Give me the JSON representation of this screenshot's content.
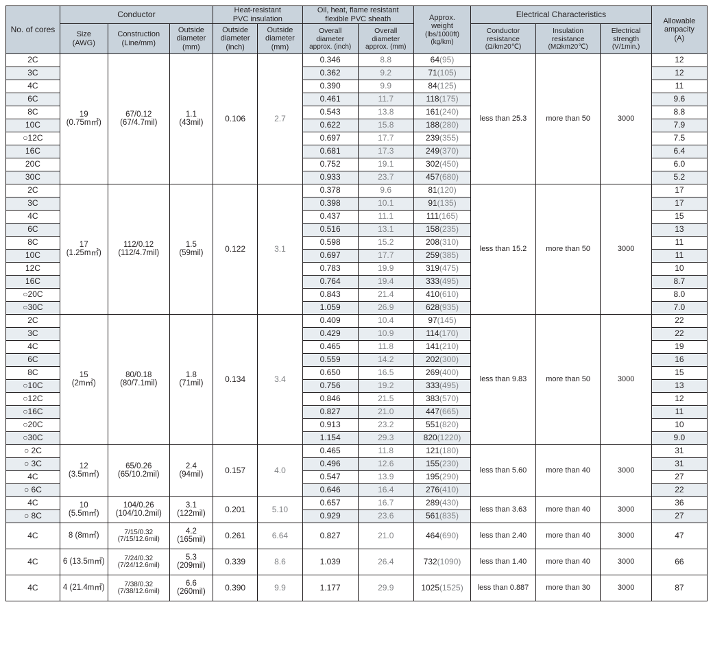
{
  "headers": {
    "cores": "No. of cores",
    "conductor": "Conductor",
    "size": "Size",
    "size_unit": "(AWG)",
    "construction": "Construction",
    "construction_unit": "(Line/mm)",
    "outside_diameter": "Outside\ndiameter",
    "od_mm": "(mm)",
    "pvc_insulation": "Heat-resistant\nPVC insulation",
    "od_inch": "(inch)",
    "sheath": "Oil, heat, flame resistant\nflexible PVC sheath",
    "overall_in": "Overall\ndiameter",
    "overall_in_unit": "approx. (inch)",
    "overall_mm_unit": "approx. (mm)",
    "weight": "Approx.\nweight",
    "weight_unit1": "(lbs/1000ft)",
    "weight_unit2": "(kg/km)",
    "elec": "Electrical Characteristics",
    "cond_res": "Conductor\nresistance",
    "cond_res_unit": "(Ω/km20℃)",
    "ins_res": "Insulation\nresistance",
    "ins_res_unit": "(MΩkm20℃)",
    "strength": "Electrical\nstrength",
    "strength_unit": "(V/1min.)",
    "ampacity": "Allowable\nampacity",
    "ampacity_unit": "(A)"
  },
  "groups": [
    {
      "size_main": "19",
      "size_sub": "(0.75m㎡)",
      "cons_main": "67/0.12",
      "cons_sub": "(67/4.7mil)",
      "od_main": "1.1",
      "od_sub": "(43mil)",
      "ins_in": "0.106",
      "ins_mm": "2.7",
      "cr": "less than 25.3",
      "ir": "more than 50",
      "es": "3000",
      "rows": [
        {
          "c": "2C",
          "oin": "0.346",
          "omm": "8.8",
          "w1": "64",
          "w2": "(95)",
          "a": "12"
        },
        {
          "c": "3C",
          "oin": "0.362",
          "omm": "9.2",
          "w1": "71",
          "w2": "(105)",
          "a": "12"
        },
        {
          "c": "4C",
          "oin": "0.390",
          "omm": "9.9",
          "w1": "84",
          "w2": "(125)",
          "a": "11"
        },
        {
          "c": "6C",
          "oin": "0.461",
          "omm": "11.7",
          "w1": "118",
          "w2": "(175)",
          "a": "9.6"
        },
        {
          "c": "8C",
          "oin": "0.543",
          "omm": "13.8",
          "w1": "161",
          "w2": "(240)",
          "a": "8.8"
        },
        {
          "c": "10C",
          "oin": "0.622",
          "omm": "15.8",
          "w1": "188",
          "w2": "(280)",
          "a": "7.9"
        },
        {
          "c": "○12C",
          "oin": "0.697",
          "omm": "17.7",
          "w1": "239",
          "w2": "(355)",
          "a": "7.5"
        },
        {
          "c": "16C",
          "oin": "0.681",
          "omm": "17.3",
          "w1": "249",
          "w2": "(370)",
          "a": "6.4"
        },
        {
          "c": "20C",
          "oin": "0.752",
          "omm": "19.1",
          "w1": "302",
          "w2": "(450)",
          "a": "6.0"
        },
        {
          "c": "30C",
          "oin": "0.933",
          "omm": "23.7",
          "w1": "457",
          "w2": "(680)",
          "a": "5.2"
        }
      ]
    },
    {
      "size_main": "17",
      "size_sub": "(1.25m㎡)",
      "cons_main": "112/0.12",
      "cons_sub": "(112/4.7mil)",
      "od_main": "1.5",
      "od_sub": "(59mil)",
      "ins_in": "0.122",
      "ins_mm": "3.1",
      "cr": "less than 15.2",
      "ir": "more than 50",
      "es": "3000",
      "rows": [
        {
          "c": "2C",
          "oin": "0.378",
          "omm": "9.6",
          "w1": "81",
          "w2": "(120)",
          "a": "17"
        },
        {
          "c": "3C",
          "oin": "0.398",
          "omm": "10.1",
          "w1": "91",
          "w2": "(135)",
          "a": "17"
        },
        {
          "c": "4C",
          "oin": "0.437",
          "omm": "11.1",
          "w1": "111",
          "w2": "(165)",
          "a": "15"
        },
        {
          "c": "6C",
          "oin": "0.516",
          "omm": "13.1",
          "w1": "158",
          "w2": "(235)",
          "a": "13"
        },
        {
          "c": "8C",
          "oin": "0.598",
          "omm": "15.2",
          "w1": "208",
          "w2": "(310)",
          "a": "11"
        },
        {
          "c": "10C",
          "oin": "0.697",
          "omm": "17.7",
          "w1": "259",
          "w2": "(385)",
          "a": "11"
        },
        {
          "c": "12C",
          "oin": "0.783",
          "omm": "19.9",
          "w1": "319",
          "w2": "(475)",
          "a": "10"
        },
        {
          "c": "16C",
          "oin": "0.764",
          "omm": "19.4",
          "w1": "333",
          "w2": "(495)",
          "a": "8.7"
        },
        {
          "c": "○20C",
          "oin": "0.843",
          "omm": "21.4",
          "w1": "410",
          "w2": "(610)",
          "a": "8.0"
        },
        {
          "c": "○30C",
          "oin": "1.059",
          "omm": "26.9",
          "w1": "628",
          "w2": "(935)",
          "a": "7.0"
        }
      ]
    },
    {
      "size_main": "15",
      "size_sub": "(2m㎡)",
      "cons_main": "80/0.18",
      "cons_sub": "(80/7.1mil)",
      "od_main": "1.8",
      "od_sub": "(71mil)",
      "ins_in": "0.134",
      "ins_mm": "3.4",
      "cr": "less than 9.83",
      "ir": "more than 50",
      "es": "3000",
      "rows": [
        {
          "c": "2C",
          "oin": "0.409",
          "omm": "10.4",
          "w1": "97",
          "w2": "(145)",
          "a": "22"
        },
        {
          "c": "3C",
          "oin": "0.429",
          "omm": "10.9",
          "w1": "114",
          "w2": "(170)",
          "a": "22"
        },
        {
          "c": "4C",
          "oin": "0.465",
          "omm": "11.8",
          "w1": "141",
          "w2": "(210)",
          "a": "19"
        },
        {
          "c": "6C",
          "oin": "0.559",
          "omm": "14.2",
          "w1": "202",
          "w2": "(300)",
          "a": "16"
        },
        {
          "c": "8C",
          "oin": "0.650",
          "omm": "16.5",
          "w1": "269",
          "w2": "(400)",
          "a": "15"
        },
        {
          "c": "○10C",
          "oin": "0.756",
          "omm": "19.2",
          "w1": "333",
          "w2": "(495)",
          "a": "13"
        },
        {
          "c": "○12C",
          "oin": "0.846",
          "omm": "21.5",
          "w1": "383",
          "w2": "(570)",
          "a": "12"
        },
        {
          "c": "○16C",
          "oin": "0.827",
          "omm": "21.0",
          "w1": "447",
          "w2": "(665)",
          "a": "11"
        },
        {
          "c": "○20C",
          "oin": "0.913",
          "omm": "23.2",
          "w1": "551",
          "w2": "(820)",
          "a": "10"
        },
        {
          "c": "○30C",
          "oin": "1.154",
          "omm": "29.3",
          "w1": "820",
          "w2": "(1220)",
          "a": "9.0"
        }
      ]
    },
    {
      "size_main": "12",
      "size_sub": "(3.5m㎡)",
      "cons_main": "65/0.26",
      "cons_sub": "(65/10.2mil)",
      "od_main": "2.4",
      "od_sub": "(94mil)",
      "ins_in": "0.157",
      "ins_mm": "4.0",
      "cr": "less than 5.60",
      "ir": "more than 40",
      "es": "3000",
      "rows": [
        {
          "c": "○ 2C",
          "oin": "0.465",
          "omm": "11.8",
          "w1": "121",
          "w2": "(180)",
          "a": "31"
        },
        {
          "c": "○ 3C",
          "oin": "0.496",
          "omm": "12.6",
          "w1": "155",
          "w2": "(230)",
          "a": "31"
        },
        {
          "c": "4C",
          "oin": "0.547",
          "omm": "13.9",
          "w1": "195",
          "w2": "(290)",
          "a": "27"
        },
        {
          "c": "○ 6C",
          "oin": "0.646",
          "omm": "16.4",
          "w1": "276",
          "w2": "(410)",
          "a": "22"
        }
      ]
    },
    {
      "size_main": "10",
      "size_sub": "(5.5m㎡)",
      "cons_main": "104/0.26",
      "cons_sub": "(104/10.2mil)",
      "od_main": "3.1",
      "od_sub": "(122mil)",
      "ins_in": "0.201",
      "ins_mm": "5.10",
      "cr": "less than 3.63",
      "ir": "more than 40",
      "es": "3000",
      "rows": [
        {
          "c": "4C",
          "oin": "0.657",
          "omm": "16.7",
          "w1": "289",
          "w2": "(430)",
          "a": "36"
        },
        {
          "c": "○ 8C",
          "oin": "0.929",
          "omm": "23.6",
          "w1": "561",
          "w2": "(835)",
          "a": "27"
        }
      ]
    },
    {
      "tall": true,
      "size_main": "8 (8m㎡)",
      "size_sub": "",
      "cons_main": "7/15/0.32",
      "cons_sub": "(7/15/12.6mil)",
      "od_main": "4.2",
      "od_sub": "(165mil)",
      "ins_in": "0.261",
      "ins_mm": "6.64",
      "cr": "less than 2.40",
      "ir": "more than 40",
      "es": "3000",
      "rows": [
        {
          "c": "4C",
          "oin": "0.827",
          "omm": "21.0",
          "w1": "464",
          "w2": "(690)",
          "a": "47"
        }
      ]
    },
    {
      "tall": true,
      "size_main": "6 (13.5m㎡)",
      "size_sub": "",
      "cons_main": "7/24/0.32",
      "cons_sub": "(7/24/12.6mil)",
      "od_main": "5.3",
      "od_sub": "(209mil)",
      "ins_in": "0.339",
      "ins_mm": "8.6",
      "cr": "less than 1.40",
      "ir": "more than 40",
      "es": "3000",
      "rows": [
        {
          "c": "4C",
          "oin": "1.039",
          "omm": "26.4",
          "w1": "732",
          "w2": "(1090)",
          "a": "66"
        }
      ]
    },
    {
      "tall": true,
      "size_main": "4 (21.4m㎡)",
      "size_sub": "",
      "cons_main": "7/38/0.32",
      "cons_sub": "(7/38/12.6mil)",
      "od_main": "6.6",
      "od_sub": "(260mil)",
      "ins_in": "0.390",
      "ins_mm": "9.9",
      "cr": "less than 0.887",
      "ir": "more than 30",
      "es": "3000",
      "rows": [
        {
          "c": "4C",
          "oin": "1.177",
          "omm": "29.9",
          "w1": "1025",
          "w2": "(1525)",
          "a": "87"
        }
      ]
    }
  ],
  "styles": {
    "header_bg": "#c9d3dc",
    "alt_bg": "#e8edf1",
    "text": "#231f20",
    "gray": "#808285",
    "border": "#231f20"
  }
}
